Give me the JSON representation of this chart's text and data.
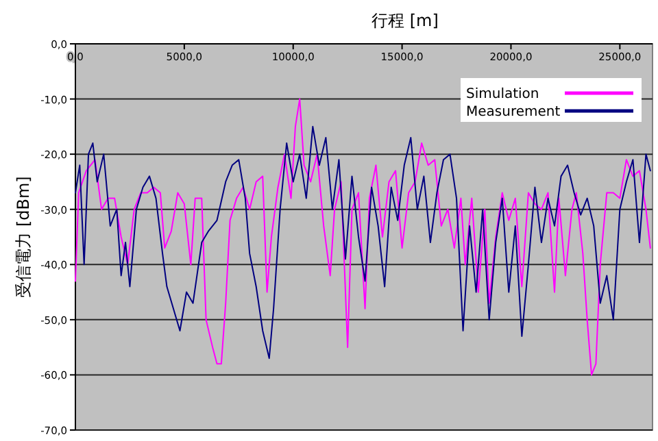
{
  "chart_data": {
    "type": "line",
    "xlabel": "行程 [m]",
    "ylabel": "受信電力 [dBm]",
    "xlim": [
      0,
      26500
    ],
    "xticks": [
      {
        "value": 0,
        "label": "0,0"
      },
      {
        "value": 5000,
        "label": "5000,0"
      },
      {
        "value": 10000,
        "label": "10000,0"
      },
      {
        "value": 15000,
        "label": "15000,0"
      },
      {
        "value": 20000,
        "label": "20000,0"
      },
      {
        "value": 25000,
        "label": "25000,0"
      }
    ],
    "ylim": [
      -70,
      0
    ],
    "yticks": [
      {
        "value": 0,
        "label": "0,0"
      },
      {
        "value": -10,
        "label": "-10,0"
      },
      {
        "value": -20,
        "label": "-20,0"
      },
      {
        "value": -30,
        "label": "-30,0"
      },
      {
        "value": -40,
        "label": "-40,0"
      },
      {
        "value": -50,
        "label": "-50,0"
      },
      {
        "value": -60,
        "label": "-60,0"
      },
      {
        "value": -70,
        "label": "-70,0"
      }
    ],
    "grid": "y",
    "legend": "top right",
    "marker": "none",
    "line_style": "solid",
    "series": [
      {
        "name": "Simulation",
        "color": "#ff00ff",
        "x": [
          0,
          150,
          500,
          900,
          1200,
          1500,
          1800,
          2100,
          2400,
          2700,
          3000,
          3300,
          3600,
          3900,
          4100,
          4400,
          4700,
          5000,
          5300,
          5500,
          5800,
          6000,
          6300,
          6500,
          6700,
          6900,
          7100,
          7400,
          7700,
          8000,
          8300,
          8600,
          8800,
          9000,
          9300,
          9600,
          9900,
          10100,
          10300,
          10500,
          10800,
          11100,
          11400,
          11700,
          11900,
          12200,
          12500,
          12700,
          13000,
          13300,
          13500,
          13800,
          14100,
          14400,
          14700,
          15000,
          15300,
          15600,
          15900,
          16200,
          16500,
          16800,
          17100,
          17400,
          17700,
          17900,
          18200,
          18500,
          18800,
          19000,
          19300,
          19600,
          19900,
          20200,
          20500,
          20800,
          21100,
          21400,
          21700,
          22000,
          22200,
          22500,
          22800,
          23000,
          23300,
          23500,
          23700,
          23900,
          24100,
          24400,
          24700,
          25000,
          25300,
          25600,
          25900,
          26200,
          26400
        ],
        "values": [
          -43,
          -27,
          -23,
          -21,
          -30,
          -28,
          -28,
          -35,
          -40,
          -30,
          -27,
          -27,
          -26,
          -27,
          -37,
          -34,
          -27,
          -29,
          -40,
          -28,
          -28,
          -50,
          -55,
          -58,
          -58,
          -47,
          -32,
          -28,
          -26,
          -30,
          -25,
          -24,
          -45,
          -35,
          -26,
          -20,
          -28,
          -15,
          -10,
          -22,
          -25,
          -20,
          -33,
          -42,
          -30,
          -25,
          -55,
          -30,
          -27,
          -48,
          -28,
          -22,
          -35,
          -25,
          -23,
          -37,
          -27,
          -25,
          -18,
          -22,
          -21,
          -33,
          -30,
          -37,
          -28,
          -40,
          -28,
          -45,
          -30,
          -47,
          -35,
          -27,
          -32,
          -28,
          -44,
          -27,
          -29,
          -30,
          -27,
          -45,
          -28,
          -42,
          -30,
          -27,
          -38,
          -50,
          -60,
          -58,
          -40,
          -27,
          -27,
          -28,
          -21,
          -24,
          -23,
          -30,
          -37
        ]
      },
      {
        "name": "Measurement",
        "color": "#000080",
        "x": [
          0,
          200,
          400,
          600,
          800,
          1000,
          1300,
          1600,
          1900,
          2100,
          2300,
          2500,
          2800,
          3100,
          3400,
          3700,
          4000,
          4200,
          4500,
          4800,
          5100,
          5400,
          5800,
          6100,
          6500,
          6900,
          7200,
          7500,
          7800,
          8000,
          8300,
          8600,
          8900,
          9100,
          9400,
          9700,
          10000,
          10300,
          10600,
          10900,
          11200,
          11500,
          11800,
          12100,
          12400,
          12700,
          13000,
          13300,
          13600,
          13900,
          14200,
          14500,
          14800,
          15100,
          15400,
          15700,
          16000,
          16300,
          16600,
          16900,
          17200,
          17500,
          17800,
          18100,
          18400,
          18700,
          19000,
          19300,
          19600,
          19900,
          20200,
          20500,
          20800,
          21100,
          21400,
          21700,
          22000,
          22300,
          22600,
          22900,
          23200,
          23500,
          23800,
          24100,
          24400,
          24700,
          25000,
          25300,
          25600,
          25900,
          26200,
          26400
        ],
        "values": [
          -27,
          -22,
          -40,
          -20,
          -18,
          -25,
          -20,
          -33,
          -30,
          -42,
          -36,
          -44,
          -30,
          -26,
          -24,
          -28,
          -38,
          -44,
          -48,
          -52,
          -45,
          -47,
          -36,
          -34,
          -32,
          -25,
          -22,
          -21,
          -28,
          -38,
          -44,
          -52,
          -57,
          -48,
          -30,
          -18,
          -25,
          -20,
          -28,
          -15,
          -22,
          -17,
          -30,
          -21,
          -39,
          -24,
          -35,
          -43,
          -26,
          -33,
          -44,
          -26,
          -32,
          -22,
          -17,
          -30,
          -24,
          -36,
          -27,
          -21,
          -20,
          -28,
          -52,
          -33,
          -45,
          -30,
          -50,
          -36,
          -28,
          -45,
          -33,
          -53,
          -40,
          -26,
          -36,
          -28,
          -33,
          -24,
          -22,
          -27,
          -31,
          -28,
          -33,
          -47,
          -42,
          -50,
          -30,
          -25,
          -21,
          -36,
          -20,
          -23
        ]
      }
    ]
  }
}
